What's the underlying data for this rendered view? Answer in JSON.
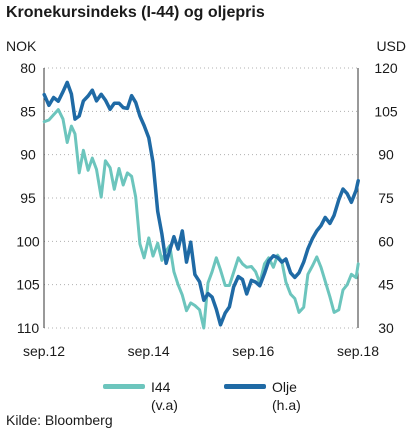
{
  "title": "Kronekursindeks (I-44) og oljepris",
  "left_unit": "NOK",
  "right_unit": "USD",
  "source": "Kilde: Bloomberg",
  "legend": [
    {
      "label": "I44",
      "note": "(v.a)",
      "color": "#6cc5bd"
    },
    {
      "label": "Olje",
      "note": "(h.a)",
      "color": "#1f6aa5"
    }
  ],
  "chart_data": {
    "type": "line",
    "title": "Kronekursindeks (I-44) og oljepris",
    "x_tick_labels": [
      "sep.12",
      "sep.14",
      "sep.16",
      "sep.18"
    ],
    "x_tick_dates": [
      2012.667,
      2014.667,
      2016.667,
      2018.667
    ],
    "xlim": [
      2012.667,
      2018.667
    ],
    "left_axis": {
      "label": "NOK",
      "ylim": [
        80,
        110
      ],
      "inverted": true,
      "ticks": [
        80,
        85,
        90,
        95,
        100,
        105,
        110
      ]
    },
    "right_axis": {
      "label": "USD",
      "ylim": [
        30,
        120
      ],
      "ticks": [
        120,
        105,
        90,
        75,
        60,
        45,
        30
      ]
    },
    "grid": "horizontal dotted",
    "series": [
      {
        "name": "I44",
        "note": "(v.a)",
        "axis": "left",
        "color": "#6cc5bd",
        "x": [
          2012.67,
          2012.76,
          2012.85,
          2012.94,
          2013.03,
          2013.11,
          2013.19,
          2013.26,
          2013.34,
          2013.42,
          2013.51,
          2013.59,
          2013.67,
          2013.76,
          2013.84,
          2013.93,
          2014.01,
          2014.1,
          2014.18,
          2014.26,
          2014.34,
          2014.42,
          2014.5,
          2014.58,
          2014.67,
          2014.75,
          2014.84,
          2014.92,
          2015.0,
          2015.07,
          2015.15,
          2015.23,
          2015.31,
          2015.39,
          2015.47,
          2015.55,
          2015.64,
          2015.72,
          2015.8,
          2015.88,
          2015.96,
          2016.04,
          2016.13,
          2016.21,
          2016.29,
          2016.38,
          2016.46,
          2016.54,
          2016.63,
          2016.71,
          2016.79,
          2016.88,
          2016.96,
          2017.05,
          2017.13,
          2017.21,
          2017.29,
          2017.38,
          2017.46,
          2017.54,
          2017.63,
          2017.71,
          2017.8,
          2017.88,
          2017.96,
          2018.04,
          2018.13,
          2018.21,
          2018.3,
          2018.38,
          2018.46,
          2018.54,
          2018.63,
          2018.67
        ],
        "y": [
          86.2,
          86.0,
          85.4,
          84.8,
          85.9,
          88.6,
          86.7,
          87.6,
          92.1,
          89.5,
          91.8,
          90.4,
          91.7,
          94.9,
          90.7,
          91.5,
          94.0,
          91.6,
          93.5,
          92.1,
          92.5,
          94.9,
          100.3,
          101.9,
          99.6,
          101.7,
          100.2,
          102.2,
          101.1,
          100.5,
          103.5,
          105.0,
          106.2,
          108.0,
          107.1,
          107.4,
          107.9,
          110.0,
          104.8,
          103.5,
          101.9,
          103.3,
          105.1,
          105.1,
          103.6,
          101.9,
          102.6,
          103.0,
          102.9,
          103.5,
          104.8,
          102.6,
          101.9,
          103.0,
          101.6,
          102.3,
          104.7,
          106.1,
          106.6,
          108.2,
          107.6,
          103.8,
          102.8,
          101.8,
          103.0,
          104.6,
          106.4,
          108.2,
          107.9,
          105.6,
          105.0,
          103.8,
          104.2,
          102.6
        ]
      },
      {
        "name": "Olje",
        "note": "(h.a)",
        "axis": "right",
        "color": "#1f6aa5",
        "x": [
          2012.67,
          2012.76,
          2012.85,
          2012.94,
          2013.03,
          2013.11,
          2013.19,
          2013.26,
          2013.34,
          2013.42,
          2013.51,
          2013.59,
          2013.67,
          2013.76,
          2013.84,
          2013.93,
          2014.01,
          2014.1,
          2014.18,
          2014.26,
          2014.34,
          2014.42,
          2014.5,
          2014.58,
          2014.67,
          2014.75,
          2014.84,
          2014.92,
          2015.0,
          2015.07,
          2015.15,
          2015.23,
          2015.31,
          2015.39,
          2015.47,
          2015.55,
          2015.64,
          2015.72,
          2015.8,
          2015.88,
          2015.96,
          2016.04,
          2016.13,
          2016.21,
          2016.29,
          2016.38,
          2016.46,
          2016.54,
          2016.63,
          2016.71,
          2016.79,
          2016.88,
          2016.96,
          2017.05,
          2017.13,
          2017.21,
          2017.29,
          2017.38,
          2017.46,
          2017.54,
          2017.63,
          2017.71,
          2017.8,
          2017.88,
          2017.96,
          2018.04,
          2018.13,
          2018.21,
          2018.3,
          2018.38,
          2018.46,
          2018.54,
          2018.63,
          2018.67
        ],
        "y": [
          110.8,
          107.1,
          109.8,
          108.5,
          111.8,
          115.0,
          111.0,
          102.3,
          103.4,
          108.6,
          110.3,
          112.3,
          108.6,
          110.9,
          108.9,
          105.7,
          107.8,
          107.8,
          106.3,
          106.0,
          110.4,
          108.1,
          103.4,
          100.1,
          95.8,
          87.4,
          70.4,
          62.5,
          52.4,
          56.9,
          61.6,
          57.3,
          63.6,
          52.8,
          59.7,
          48.5,
          46.0,
          39.6,
          41.9,
          40.7,
          36.5,
          31.1,
          35.2,
          37.3,
          44.2,
          47.8,
          46.8,
          41.8,
          46.5,
          45.9,
          44.6,
          48.9,
          53.2,
          55.0,
          54.4,
          52.8,
          53.9,
          49.1,
          47.5,
          49.1,
          52.8,
          57.4,
          61.1,
          63.6,
          65.4,
          68.3,
          66.2,
          69.0,
          74.4,
          78.1,
          76.5,
          73.5,
          77.7,
          81.0
        ]
      }
    ]
  }
}
